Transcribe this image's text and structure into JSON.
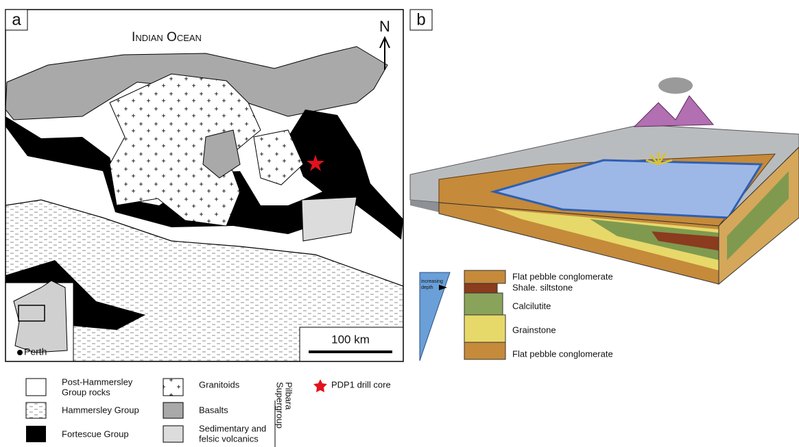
{
  "panel_a": {
    "label": "a",
    "map": {
      "ocean_label": "Indian Ocean",
      "north_label": "N",
      "scale_label": "100 km",
      "inset_label": "Perth"
    },
    "legend": [
      {
        "lines": [
          "Post-Hammersley",
          "Group rocks"
        ]
      },
      {
        "lines": [
          "Hammersley Group"
        ]
      },
      {
        "lines": [
          "Fortescue Group"
        ]
      },
      {
        "lines": [
          "Granitoids"
        ]
      },
      {
        "lines": [
          "Basalts"
        ]
      },
      {
        "lines": [
          "Sedimentary and",
          "felsic volcanics"
        ]
      },
      {
        "lines": [
          "PDP1 drill core"
        ]
      }
    ],
    "group_label": [
      "Pilbara",
      "Supergroup"
    ]
  },
  "panel_b": {
    "label": "b",
    "depth_label": [
      "increasing",
      "depth"
    ],
    "column_labels": [
      "Flat pebble conglomerate",
      "Shale. siltstone",
      "Calcilutite",
      "Grainstone",
      "Flat pebble conglomerate"
    ]
  }
}
